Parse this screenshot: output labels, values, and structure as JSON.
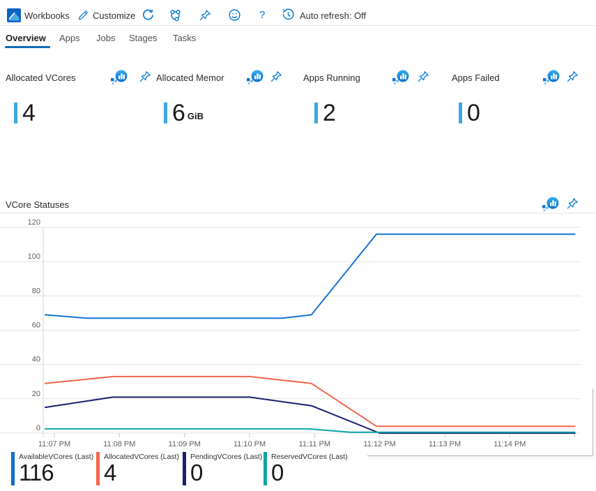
{
  "toolbar": {
    "app_title": "Workbooks",
    "customize_label": "Customize",
    "auto_refresh_label": "Auto refresh: Off",
    "help_label": "?"
  },
  "icons": {
    "workbooks-logo": "blue square with area chart",
    "customize-icon": "pencil",
    "refresh-icon": "circular arrow",
    "share-icon": "linked circles",
    "pin-icon": "pushpin outline",
    "feedback-icon": "smiley face",
    "help-icon": "question mark",
    "auto-refresh-clock-icon": "clock with arrow",
    "metrics-icon": "blue circle with white bars",
    "accent_color": "#0078d4"
  },
  "tabs": [
    {
      "label": "Overview",
      "active": true
    },
    {
      "label": "Apps",
      "active": false
    },
    {
      "label": "Jobs",
      "active": false
    },
    {
      "label": "Stages",
      "active": false
    },
    {
      "label": "Tasks",
      "active": false
    }
  ],
  "tiles": [
    {
      "label": "Allocated VCores",
      "value": "4",
      "unit": ""
    },
    {
      "label": "Allocated Memor",
      "value": "6",
      "unit": "GiB"
    },
    {
      "label": "Apps Running",
      "value": "2",
      "unit": ""
    },
    {
      "label": "Apps Failed",
      "value": "0",
      "unit": ""
    }
  ],
  "section": {
    "title": "VCore Statuses"
  },
  "chart_data": {
    "type": "line",
    "title": "VCore Statuses",
    "grid": true,
    "legend_position": "bottom",
    "ylim": [
      0,
      120
    ],
    "y_ticks": [
      120,
      100,
      80,
      60,
      40,
      20,
      0
    ],
    "x_axis": {
      "labels": [
        "11:07 PM",
        "11:08 PM",
        "11:09 PM",
        "11:10 PM",
        "11:11 PM",
        "11:12 PM",
        "11:13 PM",
        "11:14 PM"
      ],
      "label_minutes": [
        7,
        8,
        9,
        10,
        11,
        12,
        13,
        14
      ],
      "tick_minutes": [
        7,
        8,
        9,
        10,
        11,
        12,
        13,
        14,
        15
      ],
      "range_minutes": [
        6.86,
        15
      ]
    },
    "series": [
      {
        "name": "AvailableVCores",
        "color": "#1673d4",
        "last": 116,
        "points": [
          [
            6.86,
            69
          ],
          [
            7.5,
            67
          ],
          [
            10.5,
            67
          ],
          [
            10.95,
            69
          ],
          [
            11.95,
            116
          ],
          [
            15,
            116
          ]
        ]
      },
      {
        "name": "AllocatedVCores",
        "color": "#f2664c",
        "last": 4,
        "points": [
          [
            6.86,
            29
          ],
          [
            7.9,
            33
          ],
          [
            10.0,
            33
          ],
          [
            10.95,
            29
          ],
          [
            11.95,
            4
          ],
          [
            15,
            4
          ]
        ]
      },
      {
        "name": "PendingVCores",
        "color": "#18206e",
        "last": 0,
        "points": [
          [
            6.86,
            15
          ],
          [
            7.9,
            21
          ],
          [
            10.0,
            21
          ],
          [
            10.95,
            16
          ],
          [
            12.0,
            0
          ],
          [
            15,
            0
          ]
        ]
      },
      {
        "name": "ReservedVCores",
        "color": "#0da6a6",
        "last": 0,
        "points": [
          [
            6.86,
            2.5
          ],
          [
            10.9,
            2.5
          ],
          [
            11.55,
            0.5
          ],
          [
            15,
            0.5
          ]
        ]
      }
    ],
    "legend": [
      {
        "label": "AvailableVCores (Last)",
        "value": "116",
        "color": "#0d70cc"
      },
      {
        "label": "AllocatedVCores (Last)",
        "value": "4",
        "color": "#f2664c"
      },
      {
        "label": "PendingVCores (Last)",
        "value": "0",
        "color": "#18206e"
      },
      {
        "label": "ReservedVCores (Last)",
        "value": "0",
        "color": "#0da6a6"
      }
    ]
  }
}
